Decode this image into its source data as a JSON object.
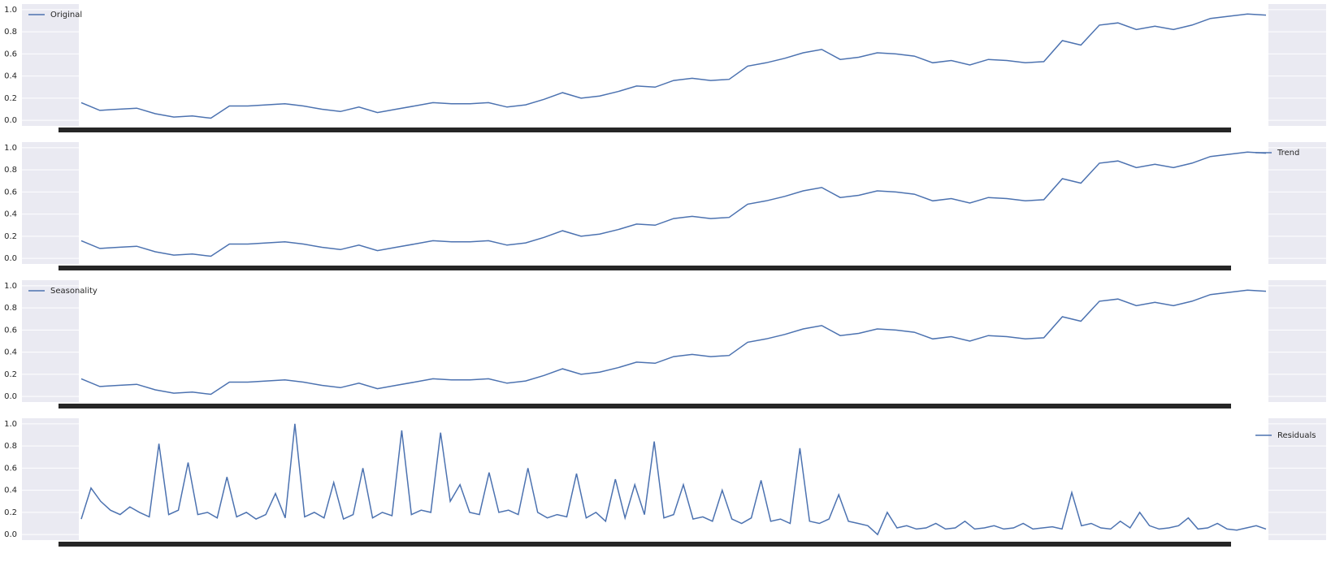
{
  "chart_data": [
    {
      "type": "line",
      "legend": "upper left",
      "grid": true,
      "ylim": [
        -0.05,
        1.05
      ],
      "yticks": [
        {
          "value": 0,
          "label": "0.0"
        },
        0.2,
        0.4,
        0.6,
        0.8,
        {
          "value": 1,
          "label": "1.0"
        }
      ],
      "series": [
        {
          "name": "Original",
          "color": "#4c72b0",
          "values": [
            0.16,
            0.09,
            0.1,
            0.11,
            0.06,
            0.03,
            0.04,
            0.02,
            0.13,
            0.13,
            0.14,
            0.15,
            0.13,
            0.1,
            0.08,
            0.12,
            0.07,
            0.1,
            0.13,
            0.16,
            0.15,
            0.15,
            0.16,
            0.12,
            0.14,
            0.19,
            0.25,
            0.2,
            0.22,
            0.26,
            0.31,
            0.3,
            0.36,
            0.38,
            0.36,
            0.37,
            0.49,
            0.52,
            0.56,
            0.61,
            0.64,
            0.55,
            0.57,
            0.61,
            0.6,
            0.58,
            0.52,
            0.54,
            0.5,
            0.55,
            0.54,
            0.52,
            0.53,
            0.72,
            0.68,
            0.86,
            0.88,
            0.82,
            0.85,
            0.82,
            0.86,
            0.92,
            0.94,
            0.96,
            0.95
          ]
        }
      ]
    },
    {
      "type": "line",
      "legend": "upper right",
      "grid": true,
      "ylim": [
        -0.05,
        1.05
      ],
      "yticks": [
        {
          "value": 0,
          "label": "0.0"
        },
        0.2,
        0.4,
        0.6,
        0.8,
        {
          "value": 1,
          "label": "1.0"
        }
      ],
      "series": [
        {
          "name": "Trend",
          "color": "#4c72b0",
          "values": [
            0.16,
            0.09,
            0.1,
            0.11,
            0.06,
            0.03,
            0.04,
            0.02,
            0.13,
            0.13,
            0.14,
            0.15,
            0.13,
            0.1,
            0.08,
            0.12,
            0.07,
            0.1,
            0.13,
            0.16,
            0.15,
            0.15,
            0.16,
            0.12,
            0.14,
            0.19,
            0.25,
            0.2,
            0.22,
            0.26,
            0.31,
            0.3,
            0.36,
            0.38,
            0.36,
            0.37,
            0.49,
            0.52,
            0.56,
            0.61,
            0.64,
            0.55,
            0.57,
            0.61,
            0.6,
            0.58,
            0.52,
            0.54,
            0.5,
            0.55,
            0.54,
            0.52,
            0.53,
            0.72,
            0.68,
            0.86,
            0.88,
            0.82,
            0.85,
            0.82,
            0.86,
            0.92,
            0.94,
            0.96,
            0.95
          ]
        }
      ]
    },
    {
      "type": "line",
      "legend": "upper left",
      "grid": true,
      "ylim": [
        -0.05,
        1.05
      ],
      "yticks": [
        {
          "value": 0,
          "label": "0.0"
        },
        0.2,
        0.4,
        0.6,
        0.8,
        {
          "value": 1,
          "label": "1.0"
        }
      ],
      "series": [
        {
          "name": "Seasonality",
          "color": "#4c72b0",
          "values": [
            0.16,
            0.09,
            0.1,
            0.11,
            0.06,
            0.03,
            0.04,
            0.02,
            0.13,
            0.13,
            0.14,
            0.15,
            0.13,
            0.1,
            0.08,
            0.12,
            0.07,
            0.1,
            0.13,
            0.16,
            0.15,
            0.15,
            0.16,
            0.12,
            0.14,
            0.19,
            0.25,
            0.2,
            0.22,
            0.26,
            0.31,
            0.3,
            0.36,
            0.38,
            0.36,
            0.37,
            0.49,
            0.52,
            0.56,
            0.61,
            0.64,
            0.55,
            0.57,
            0.61,
            0.6,
            0.58,
            0.52,
            0.54,
            0.5,
            0.55,
            0.54,
            0.52,
            0.53,
            0.72,
            0.68,
            0.86,
            0.88,
            0.82,
            0.85,
            0.82,
            0.86,
            0.92,
            0.94,
            0.96,
            0.95
          ]
        }
      ]
    },
    {
      "type": "line",
      "legend": "upper right",
      "grid": true,
      "ylim": [
        -0.05,
        1.05
      ],
      "yticks": [
        {
          "value": 0,
          "label": "0.0"
        },
        0.2,
        0.4,
        0.6,
        0.8,
        {
          "value": 1,
          "label": "1.0"
        }
      ],
      "series": [
        {
          "name": "Residuals",
          "color": "#4c72b0",
          "values": [
            0.14,
            0.42,
            0.3,
            0.22,
            0.18,
            0.25,
            0.2,
            0.16,
            0.82,
            0.18,
            0.22,
            0.65,
            0.18,
            0.2,
            0.15,
            0.52,
            0.16,
            0.2,
            0.14,
            0.18,
            0.37,
            0.15,
            1.0,
            0.16,
            0.2,
            0.15,
            0.47,
            0.14,
            0.18,
            0.6,
            0.15,
            0.2,
            0.17,
            0.94,
            0.18,
            0.22,
            0.2,
            0.92,
            0.3,
            0.45,
            0.2,
            0.18,
            0.56,
            0.2,
            0.22,
            0.18,
            0.6,
            0.2,
            0.15,
            0.18,
            0.16,
            0.55,
            0.15,
            0.2,
            0.12,
            0.5,
            0.15,
            0.45,
            0.18,
            0.84,
            0.15,
            0.18,
            0.45,
            0.14,
            0.16,
            0.12,
            0.4,
            0.14,
            0.1,
            0.15,
            0.49,
            0.12,
            0.14,
            0.1,
            0.78,
            0.12,
            0.1,
            0.14,
            0.36,
            0.12,
            0.1,
            0.08,
            0.0,
            0.2,
            0.06,
            0.08,
            0.05,
            0.06,
            0.1,
            0.05,
            0.06,
            0.12,
            0.05,
            0.06,
            0.08,
            0.05,
            0.06,
            0.1,
            0.05,
            0.06,
            0.07,
            0.05,
            0.38,
            0.08,
            0.1,
            0.06,
            0.05,
            0.12,
            0.06,
            0.2,
            0.08,
            0.05,
            0.06,
            0.08,
            0.15,
            0.05,
            0.06,
            0.1,
            0.05,
            0.04,
            0.06,
            0.08,
            0.05
          ]
        }
      ]
    }
  ]
}
